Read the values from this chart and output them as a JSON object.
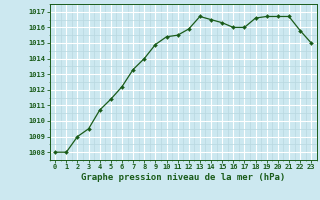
{
  "x": [
    0,
    1,
    2,
    3,
    4,
    5,
    6,
    7,
    8,
    9,
    10,
    11,
    12,
    13,
    14,
    15,
    16,
    17,
    18,
    19,
    20,
    21,
    22,
    23
  ],
  "y": [
    1008.0,
    1008.0,
    1009.0,
    1009.5,
    1010.7,
    1011.4,
    1012.2,
    1013.3,
    1014.0,
    1014.9,
    1015.4,
    1015.5,
    1015.9,
    1016.7,
    1016.5,
    1016.3,
    1016.0,
    1016.0,
    1016.6,
    1016.7,
    1016.7,
    1016.7,
    1015.8,
    1015.0
  ],
  "line_color": "#1a5c1a",
  "marker": "D",
  "marker_size": 2.0,
  "bg_color": "#cce8f0",
  "grid_major_color": "#ffffff",
  "grid_minor_color": "#b8d8e0",
  "ylabel_ticks": [
    1008,
    1009,
    1010,
    1011,
    1012,
    1013,
    1014,
    1015,
    1016,
    1017
  ],
  "xlabel": "Graphe pression niveau de la mer (hPa)",
  "ylim": [
    1007.5,
    1017.5
  ],
  "xlim": [
    -0.5,
    23.5
  ],
  "label_fontsize": 6.5,
  "tick_fontsize": 5.0
}
